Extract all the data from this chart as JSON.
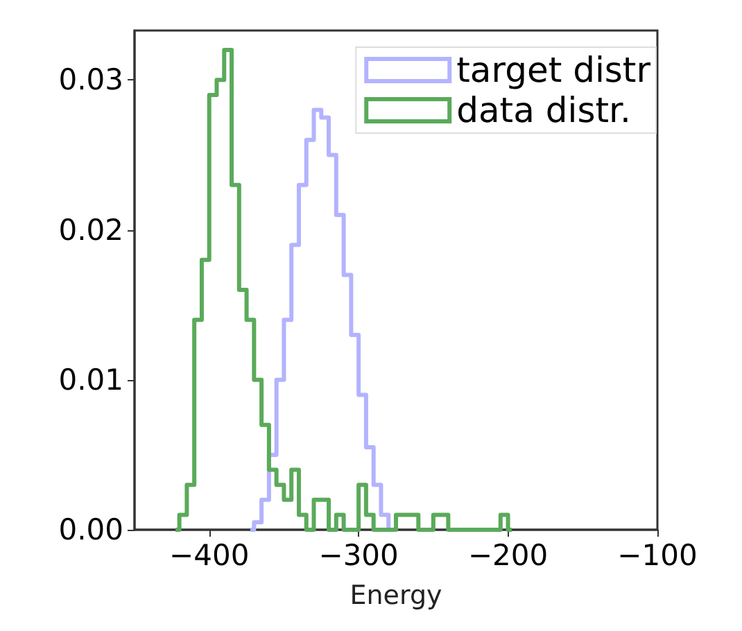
{
  "chart_data": {
    "type": "step",
    "xlabel": "Energy",
    "xlim": [
      -450,
      -100
    ],
    "xticks": [
      {
        "value": -400,
        "label": "−400"
      },
      {
        "value": -300,
        "label": "−300"
      },
      {
        "value": -200,
        "label": "−200"
      },
      {
        "value": -100,
        "label": "−100"
      }
    ],
    "ylim": [
      0,
      0.0333
    ],
    "yticks": [
      {
        "value": 0,
        "label": "0.00"
      },
      {
        "value": 0.01,
        "label": "0.01"
      },
      {
        "value": 0.02,
        "label": "0.02"
      },
      {
        "value": 0.03,
        "label": "0.03"
      }
    ],
    "grid": false,
    "legend": "top right",
    "marker": "none",
    "series": [
      {
        "name": "target distr",
        "color": "#b3b3ff",
        "x": [
          -372.5,
          -367.5,
          -362.5,
          -357.5,
          -352.5,
          -347.5,
          -342.5,
          -337.5,
          -332.5,
          -327.5,
          -322.5,
          -317.5,
          -312.5,
          -307.5,
          -302.5,
          -297.5,
          -292.5,
          -287.5,
          -282.5,
          -277.5
        ],
        "values": [
          0,
          0.0005,
          0.002,
          0.005,
          0.01,
          0.014,
          0.019,
          0.023,
          0.026,
          0.028,
          0.0275,
          0.025,
          0.021,
          0.017,
          0.013,
          0.009,
          0.0055,
          0.003,
          0.001,
          0
        ]
      },
      {
        "name": "data distr.",
        "color": "#5aaa5a",
        "x": [
          -422.5,
          -417.5,
          -412.5,
          -407.5,
          -402.5,
          -397.5,
          -392.5,
          -387.5,
          -382.5,
          -377.5,
          -372.5,
          -367.5,
          -362.5,
          -357.5,
          -352.5,
          -347.5,
          -342.5,
          -337.5,
          -332.5,
          -327.5,
          -322.5,
          -317.5,
          -312.5,
          -307.5,
          -302.5,
          -297.5,
          -292.5,
          -287.5,
          -282.5,
          -277.5,
          -272.5,
          -267.5,
          -262.5,
          -257.5,
          -252.5,
          -247.5,
          -242.5,
          -237.5,
          -232.5,
          -227.5,
          -222.5,
          -217.5,
          -212.5,
          -207.5,
          -202.5,
          -197.5
        ],
        "values": [
          0,
          0.001,
          0.003,
          0.014,
          0.018,
          0.029,
          0.03,
          0.032,
          0.023,
          0.016,
          0.014,
          0.01,
          0.007,
          0.004,
          0.003,
          0.002,
          0.004,
          0.001,
          0,
          0.002,
          0.002,
          0,
          0.001,
          0,
          0,
          0.003,
          0.001,
          0,
          0,
          0,
          0.001,
          0.001,
          0.001,
          0,
          0,
          0.001,
          0.001,
          0,
          0,
          0,
          0,
          0,
          0,
          0,
          0.001,
          0
        ]
      }
    ]
  }
}
